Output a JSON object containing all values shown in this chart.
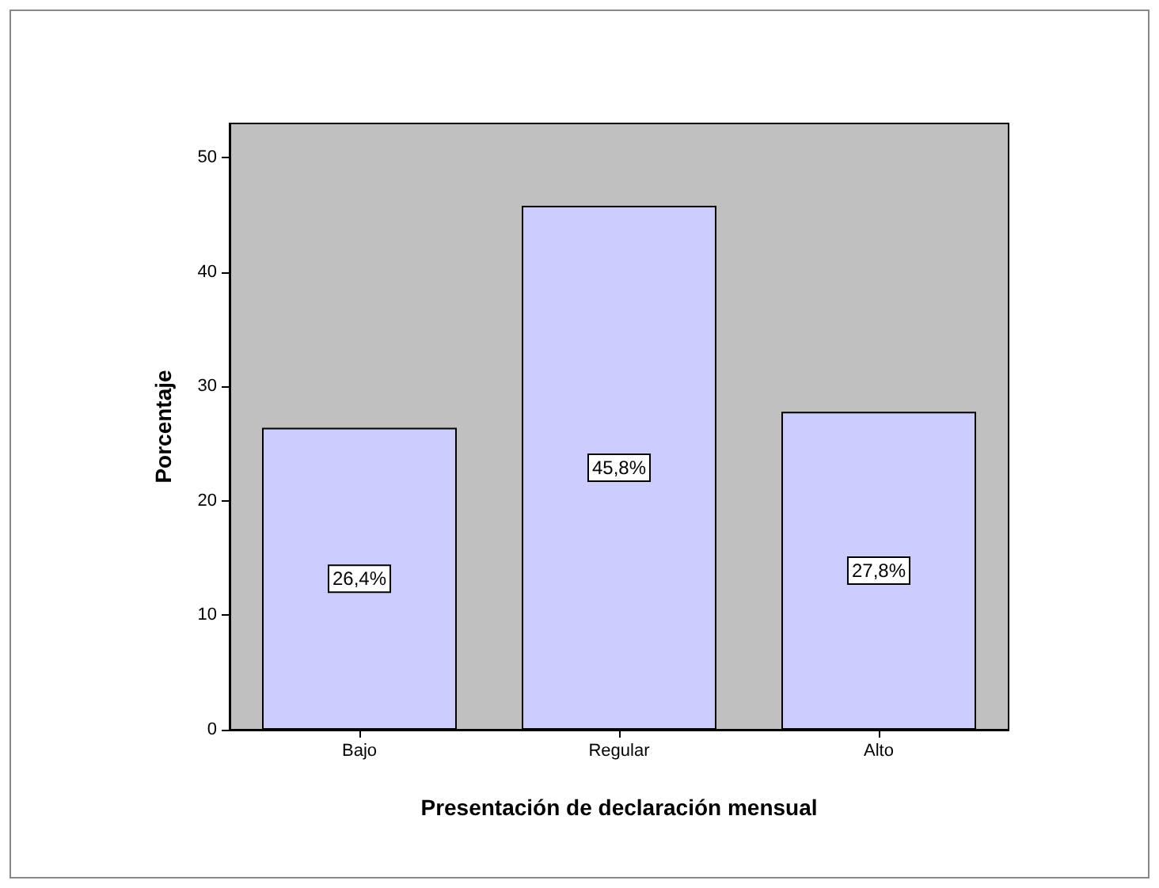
{
  "chart_data": {
    "type": "bar",
    "xlabel": "Presentación de declaración mensual",
    "ylabel": "Porcentaje",
    "categories": [
      "Bajo",
      "Regular",
      "Alto"
    ],
    "values": [
      26.4,
      45.8,
      27.8
    ],
    "value_labels": [
      "26,4%",
      "45,8%",
      "27,8%"
    ],
    "color": "#ccccff",
    "ylim": [
      0,
      53
    ],
    "yticks": [
      0,
      10,
      20,
      30,
      40,
      50
    ],
    "grid": false
  }
}
